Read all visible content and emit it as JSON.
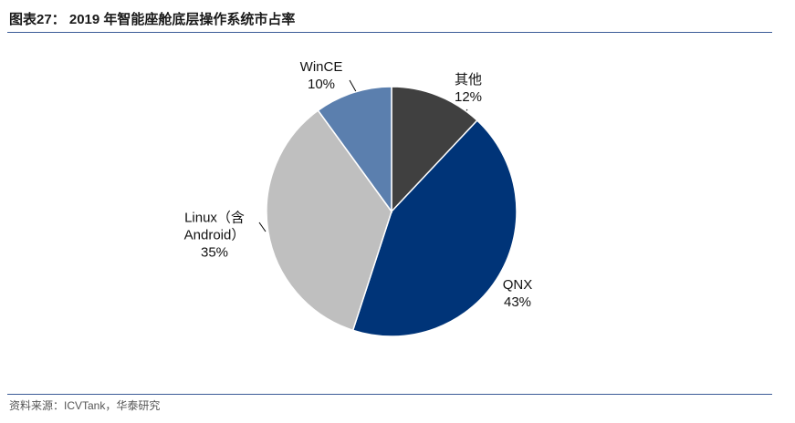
{
  "title": "图表27： 2019 年智能座舱底层操作系统市占率",
  "source": "资料来源：ICVTank，华泰研究",
  "chart_data": {
    "type": "pie",
    "categories": [
      "其他",
      "QNX",
      "Linux（含 Android）",
      "WinCE"
    ],
    "values": [
      12,
      43,
      35,
      10
    ],
    "value_labels": [
      "12%",
      "43%",
      "35%",
      "10%"
    ],
    "colors": [
      "#404040",
      "#003478",
      "#bfbfbf",
      "#5b7fae"
    ]
  }
}
